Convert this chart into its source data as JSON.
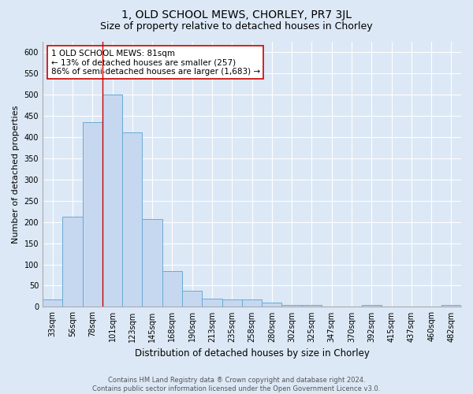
{
  "title": "1, OLD SCHOOL MEWS, CHORLEY, PR7 3JL",
  "subtitle": "Size of property relative to detached houses in Chorley",
  "xlabel": "Distribution of detached houses by size in Chorley",
  "ylabel": "Number of detached properties",
  "footer_line1": "Contains HM Land Registry data ® Crown copyright and database right 2024.",
  "footer_line2": "Contains public sector information licensed under the Open Government Licence v3.0.",
  "bar_labels": [
    "33sqm",
    "56sqm",
    "78sqm",
    "101sqm",
    "123sqm",
    "145sqm",
    "168sqm",
    "190sqm",
    "213sqm",
    "235sqm",
    "258sqm",
    "280sqm",
    "302sqm",
    "325sqm",
    "347sqm",
    "370sqm",
    "392sqm",
    "415sqm",
    "437sqm",
    "460sqm",
    "482sqm"
  ],
  "bar_values": [
    18,
    213,
    435,
    500,
    410,
    207,
    85,
    38,
    20,
    18,
    18,
    10,
    5,
    5,
    0,
    0,
    5,
    0,
    0,
    0,
    5
  ],
  "bar_color": "#c5d8f0",
  "bar_edge_color": "#6aaad4",
  "vline_x_index": 2.5,
  "vline_color": "#cc0000",
  "annotation_line1": "1 OLD SCHOOL MEWS: 81sqm",
  "annotation_line2": "← 13% of detached houses are smaller (257)",
  "annotation_line3": "86% of semi-detached houses are larger (1,683) →",
  "annotation_box_color": "#ffffff",
  "annotation_box_edge_color": "#cc0000",
  "ylim": [
    0,
    625
  ],
  "yticks": [
    0,
    50,
    100,
    150,
    200,
    250,
    300,
    350,
    400,
    450,
    500,
    550,
    600
  ],
  "bg_color": "#dce8f5",
  "plot_bg_color": "#dce8f5",
  "grid_color": "#ffffff",
  "title_fontsize": 10,
  "subtitle_fontsize": 9,
  "xlabel_fontsize": 8.5,
  "ylabel_fontsize": 8,
  "tick_fontsize": 7,
  "footer_fontsize": 6,
  "annotation_fontsize": 7.5
}
